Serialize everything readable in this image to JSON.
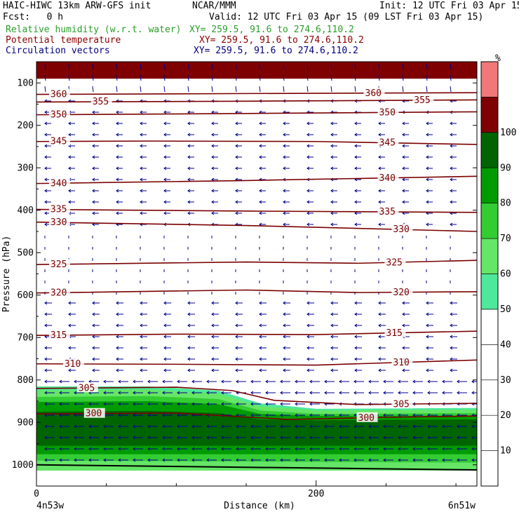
{
  "header": {
    "model": "HAIC-HIWC 13km ARW-GFS init",
    "org": "NCAR/MMM",
    "init": "Init: 12 UTC Fri 03 Apr 15",
    "fcst": "Fcst:   0 h",
    "valid": "Valid: 12 UTC Fri 03 Apr 15 (09 LST Fri 03 Apr 15)",
    "rh_label": "Relative humidity (w.r.t. water)",
    "rh_xy": "XY= 259.5, 91.6 to 274.6,110.2",
    "theta_label": "Potential temperature",
    "theta_xy": "XY= 259.5, 91.6 to 274.6,110.2",
    "vec_label": "Circulation vectors",
    "vec_xy": "XY= 259.5, 91.6 to 274.6,110.2"
  },
  "colors": {
    "rh_label": "#2a9d2a",
    "theta_label": "#8b0000",
    "vec_label": "#00007f",
    "contour": "#7a0000",
    "vector": "#00008b",
    "rh_fill": [
      "#ffffff",
      "#ffffff",
      "#ffffff",
      "#ffffff",
      "#ffffff",
      "#4ee89a",
      "#66e666",
      "#33cc33",
      "#009b00",
      "#006400",
      "#7f0000",
      "#f07878"
    ]
  },
  "chart_data": {
    "type": "cross-section",
    "xlabel": "Distance (km)",
    "ylabel": "Pressure (hPa)",
    "xlim": [
      0,
      315
    ],
    "x_ticks": [
      0,
      200
    ],
    "ylim": [
      1050,
      50
    ],
    "y_ticks": [
      100,
      200,
      300,
      400,
      500,
      600,
      700,
      800,
      900,
      1000
    ],
    "left_endpoint": "4n53w",
    "right_endpoint": "6n51w",
    "colorbar": {
      "unit": "%",
      "levels": [
        0,
        10,
        20,
        30,
        40,
        50,
        60,
        70,
        80,
        90,
        100,
        110
      ],
      "tick_labels": [
        10,
        20,
        30,
        40,
        50,
        60,
        70,
        80,
        90,
        100
      ]
    },
    "theta_contours": [
      {
        "value": 300,
        "x": [
          0,
          100,
          180,
          250,
          315
        ],
        "p": [
          880,
          878,
          893,
          888,
          885
        ],
        "labels": [
          {
            "x": 35,
            "text": "300"
          },
          {
            "x": 230,
            "text": "300"
          }
        ]
      },
      {
        "value": 305,
        "x": [
          0,
          100,
          140,
          170,
          230,
          315
        ],
        "p": [
          820,
          817,
          825,
          848,
          858,
          855
        ],
        "labels": [
          {
            "x": 30,
            "text": "305"
          },
          {
            "x": 255,
            "text": "305"
          }
        ]
      },
      {
        "value": 310,
        "x": [
          0,
          100,
          200,
          315
        ],
        "p": [
          762,
          763,
          765,
          753
        ],
        "labels": [
          {
            "x": 20,
            "text": "310"
          },
          {
            "x": 255,
            "text": "310"
          }
        ]
      },
      {
        "value": 315,
        "x": [
          0,
          100,
          200,
          315
        ],
        "p": [
          695,
          692,
          693,
          685
        ],
        "labels": [
          {
            "x": 10,
            "text": "315"
          },
          {
            "x": 250,
            "text": "315"
          }
        ]
      },
      {
        "value": 320,
        "x": [
          0,
          150,
          230,
          315
        ],
        "p": [
          595,
          588,
          594,
          592
        ],
        "labels": [
          {
            "x": 10,
            "text": "320"
          },
          {
            "x": 255,
            "text": "320"
          }
        ]
      },
      {
        "value": 325,
        "x": [
          0,
          150,
          230,
          315
        ],
        "p": [
          528,
          522,
          525,
          518
        ],
        "labels": [
          {
            "x": 10,
            "text": "325"
          },
          {
            "x": 250,
            "text": "325"
          }
        ]
      },
      {
        "value": 330,
        "x": [
          0,
          150,
          315
        ],
        "p": [
          428,
          436,
          450
        ],
        "labels": [
          {
            "x": 10,
            "text": "330"
          },
          {
            "x": 255,
            "text": "330"
          }
        ]
      },
      {
        "value": 335,
        "x": [
          0,
          150,
          315
        ],
        "p": [
          398,
          402,
          405
        ],
        "labels": [
          {
            "x": 10,
            "text": "335"
          },
          {
            "x": 245,
            "text": "335"
          }
        ]
      },
      {
        "value": 340,
        "x": [
          0,
          150,
          315
        ],
        "p": [
          337,
          330,
          320
        ],
        "labels": [
          {
            "x": 10,
            "text": "340"
          },
          {
            "x": 245,
            "text": "340"
          }
        ]
      },
      {
        "value": 345,
        "x": [
          0,
          80,
          200,
          315
        ],
        "p": [
          238,
          237,
          238,
          245
        ],
        "labels": [
          {
            "x": 10,
            "text": "345"
          },
          {
            "x": 245,
            "text": "345"
          }
        ]
      },
      {
        "value": 350,
        "x": [
          0,
          150,
          315
        ],
        "p": [
          175,
          172,
          168
        ],
        "labels": [
          {
            "x": 10,
            "text": "350"
          },
          {
            "x": 245,
            "text": "350"
          }
        ]
      },
      {
        "value": 355,
        "x": [
          0,
          150,
          315
        ],
        "p": [
          145,
          143,
          140
        ],
        "labels": [
          {
            "x": 40,
            "text": "355"
          },
          {
            "x": 270,
            "text": "355"
          }
        ]
      },
      {
        "value": 360,
        "x": [
          0,
          150,
          315
        ],
        "p": [
          127,
          125,
          123
        ],
        "labels": [
          {
            "x": 10,
            "text": "360"
          },
          {
            "x": 235,
            "text": "360"
          }
        ]
      }
    ],
    "rh_layers": [
      {
        "level": 50,
        "x": [
          0,
          80,
          130,
          160,
          200,
          315
        ],
        "p": [
          815,
          815,
          825,
          855,
          868,
          866
        ]
      },
      {
        "level": 60,
        "x": [
          0,
          80,
          130,
          160,
          200,
          315
        ],
        "p": [
          825,
          823,
          832,
          862,
          872,
          870
        ]
      },
      {
        "level": 70,
        "x": [
          0,
          80,
          130,
          160,
          200,
          315
        ],
        "p": [
          840,
          838,
          845,
          872,
          880,
          878
        ]
      },
      {
        "level": 80,
        "x": [
          0,
          80,
          130,
          160,
          200,
          315
        ],
        "p": [
          852,
          850,
          857,
          880,
          885,
          884
        ]
      },
      {
        "level": 90,
        "x": [
          0,
          80,
          130,
          160,
          200,
          315
        ],
        "p": [
          875,
          873,
          878,
          893,
          895,
          893
        ]
      },
      {
        "level": 90,
        "x": [
          0,
          315
        ],
        "p": [
          935,
          935
        ]
      },
      {
        "level": 80,
        "x": [
          0,
          315
        ],
        "p": [
          955,
          955
        ]
      },
      {
        "level": 70,
        "x": [
          0,
          315
        ],
        "p": [
          975,
          975
        ]
      },
      {
        "level": 60,
        "x": [
          0,
          315
        ],
        "p": [
          990,
          995
        ]
      }
    ],
    "rh_top_band": {
      "level": 100,
      "p_bottom": 90
    },
    "terrain": {
      "x": [
        0,
        315
      ],
      "p": [
        1000,
        1012
      ]
    }
  }
}
